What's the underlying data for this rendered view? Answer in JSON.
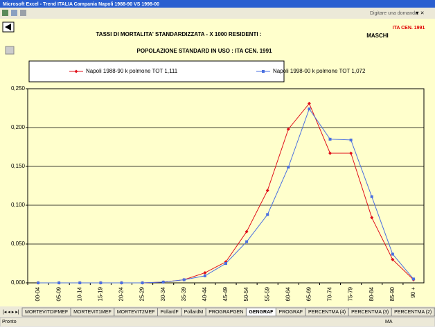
{
  "window": {
    "title": "Microsoft Excel - Trend ITALIA Campania Napoli 1988-90 VS 1998-00",
    "question_box": "Digitare una domanda."
  },
  "header": {
    "title": "TASSI DI MORTALITA' STANDARDIZZATA - X 1000 RESIDENTI :",
    "sex": "MASCHI",
    "census": "ITA CEN. 1991",
    "subtitle": "POPOLAZIONE STANDARD IN USO : ITA CEN. 1991"
  },
  "chart_data": {
    "type": "line",
    "categories": [
      "00-04",
      "05-09",
      "10-14",
      "15-19",
      "20-24",
      "25-29",
      "30-34",
      "35-39",
      "40-44",
      "45-49",
      "50-54",
      "55-59",
      "60-64",
      "65-69",
      "70-74",
      "75-79",
      "80-84",
      "85-90",
      "90 +"
    ],
    "series": [
      {
        "name": "Napoli 1988-90 k polmone TOT 1,111",
        "color": "#e0101a",
        "marker": "diamond",
        "values": [
          0,
          0,
          0,
          0,
          0,
          0,
          0.001,
          0.004,
          0.013,
          0.027,
          0.066,
          0.119,
          0.198,
          0.231,
          0.167,
          0.167,
          0.084,
          0.03,
          0.004
        ]
      },
      {
        "name": "Napoli 1998-00 k polmone TOT 1,072",
        "color": "#4a6fe0",
        "marker": "square",
        "values": [
          0,
          0,
          0,
          0,
          0,
          0,
          0.001,
          0.004,
          0.009,
          0.025,
          0.053,
          0.088,
          0.149,
          0.224,
          0.185,
          0.184,
          0.111,
          0.037,
          0.005
        ]
      }
    ],
    "ylim": [
      0,
      0.25
    ],
    "yticks": [
      {
        "value": 0,
        "label": "0,000"
      },
      {
        "value": 0.05,
        "label": "0,050"
      },
      {
        "value": 0.1,
        "label": "0,100"
      },
      {
        "value": 0.15,
        "label": "0,150"
      },
      {
        "value": 0.2,
        "label": "0,200"
      },
      {
        "value": 0.25,
        "label": "0,250"
      }
    ],
    "grid": true
  },
  "sheet_tabs": [
    "MORTEVITDIFMEF",
    "MORTEVIT1MEF",
    "MORTEVIT2MEF",
    "PollardF",
    "PollardM",
    "PROGRAPGEN",
    "GENGRAF",
    "PROGRAF",
    "PERCENTMA (4)",
    "PERCENTMA (3)",
    "PERCENTMA (2)",
    "PERC"
  ],
  "active_tab": 6,
  "status_bar": {
    "left": "Pronto",
    "right": "MA"
  }
}
